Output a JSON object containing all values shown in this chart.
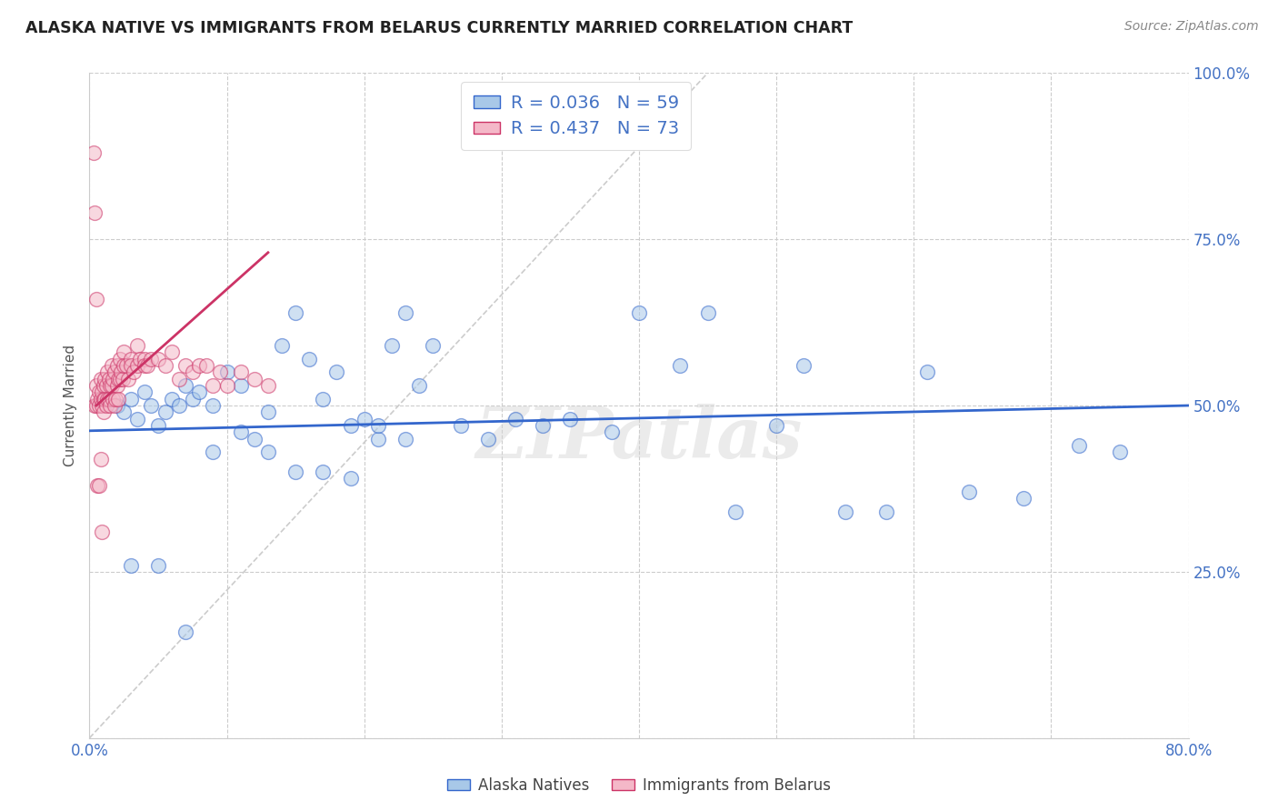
{
  "title": "ALASKA NATIVE VS IMMIGRANTS FROM BELARUS CURRENTLY MARRIED CORRELATION CHART",
  "source": "Source: ZipAtlas.com",
  "ylabel": "Currently Married",
  "xlim": [
    0.0,
    0.8
  ],
  "ylim": [
    0.0,
    1.0
  ],
  "color_blue": "#a8c8e8",
  "color_pink": "#f4b8c8",
  "color_blue_line": "#3366cc",
  "color_pink_line": "#cc3366",
  "color_diagonal": "#cccccc",
  "color_axis": "#4472c4",
  "watermark": "ZIPatlas",
  "blue_scatter_x": [
    0.02,
    0.025,
    0.03,
    0.035,
    0.04,
    0.045,
    0.05,
    0.055,
    0.06,
    0.065,
    0.07,
    0.075,
    0.08,
    0.09,
    0.1,
    0.11,
    0.12,
    0.13,
    0.14,
    0.15,
    0.16,
    0.17,
    0.18,
    0.19,
    0.2,
    0.21,
    0.22,
    0.23,
    0.24,
    0.25,
    0.27,
    0.29,
    0.31,
    0.33,
    0.35,
    0.38,
    0.4,
    0.43,
    0.45,
    0.47,
    0.5,
    0.52,
    0.55,
    0.58,
    0.61,
    0.64,
    0.68,
    0.72,
    0.75,
    0.03,
    0.05,
    0.07,
    0.09,
    0.11,
    0.13,
    0.15,
    0.17,
    0.19,
    0.21,
    0.23
  ],
  "blue_scatter_y": [
    0.5,
    0.49,
    0.51,
    0.48,
    0.52,
    0.5,
    0.47,
    0.49,
    0.51,
    0.5,
    0.53,
    0.51,
    0.52,
    0.5,
    0.55,
    0.53,
    0.45,
    0.49,
    0.59,
    0.64,
    0.57,
    0.51,
    0.55,
    0.47,
    0.48,
    0.45,
    0.59,
    0.64,
    0.53,
    0.59,
    0.47,
    0.45,
    0.48,
    0.47,
    0.48,
    0.46,
    0.64,
    0.56,
    0.64,
    0.34,
    0.47,
    0.56,
    0.34,
    0.34,
    0.55,
    0.37,
    0.36,
    0.44,
    0.43,
    0.26,
    0.26,
    0.16,
    0.43,
    0.46,
    0.43,
    0.4,
    0.4,
    0.39,
    0.47,
    0.45
  ],
  "pink_scatter_x": [
    0.004,
    0.005,
    0.005,
    0.006,
    0.007,
    0.007,
    0.008,
    0.008,
    0.009,
    0.009,
    0.01,
    0.01,
    0.01,
    0.011,
    0.011,
    0.012,
    0.012,
    0.013,
    0.013,
    0.014,
    0.014,
    0.015,
    0.015,
    0.016,
    0.016,
    0.017,
    0.017,
    0.018,
    0.018,
    0.019,
    0.02,
    0.02,
    0.021,
    0.021,
    0.022,
    0.022,
    0.023,
    0.024,
    0.025,
    0.025,
    0.027,
    0.028,
    0.03,
    0.03,
    0.032,
    0.035,
    0.035,
    0.037,
    0.04,
    0.04,
    0.042,
    0.045,
    0.05,
    0.055,
    0.06,
    0.065,
    0.07,
    0.075,
    0.08,
    0.085,
    0.09,
    0.095,
    0.1,
    0.11,
    0.12,
    0.13,
    0.003,
    0.004,
    0.005,
    0.006,
    0.007,
    0.008,
    0.009
  ],
  "pink_scatter_y": [
    0.5,
    0.53,
    0.5,
    0.51,
    0.52,
    0.5,
    0.51,
    0.54,
    0.52,
    0.5,
    0.51,
    0.53,
    0.49,
    0.54,
    0.51,
    0.53,
    0.5,
    0.55,
    0.51,
    0.54,
    0.51,
    0.53,
    0.5,
    0.56,
    0.53,
    0.54,
    0.51,
    0.55,
    0.5,
    0.51,
    0.56,
    0.53,
    0.54,
    0.51,
    0.57,
    0.54,
    0.55,
    0.54,
    0.58,
    0.56,
    0.56,
    0.54,
    0.57,
    0.56,
    0.55,
    0.59,
    0.56,
    0.57,
    0.57,
    0.56,
    0.56,
    0.57,
    0.57,
    0.56,
    0.58,
    0.54,
    0.56,
    0.55,
    0.56,
    0.56,
    0.53,
    0.55,
    0.53,
    0.55,
    0.54,
    0.53,
    0.88,
    0.79,
    0.66,
    0.38,
    0.38,
    0.42,
    0.31
  ]
}
